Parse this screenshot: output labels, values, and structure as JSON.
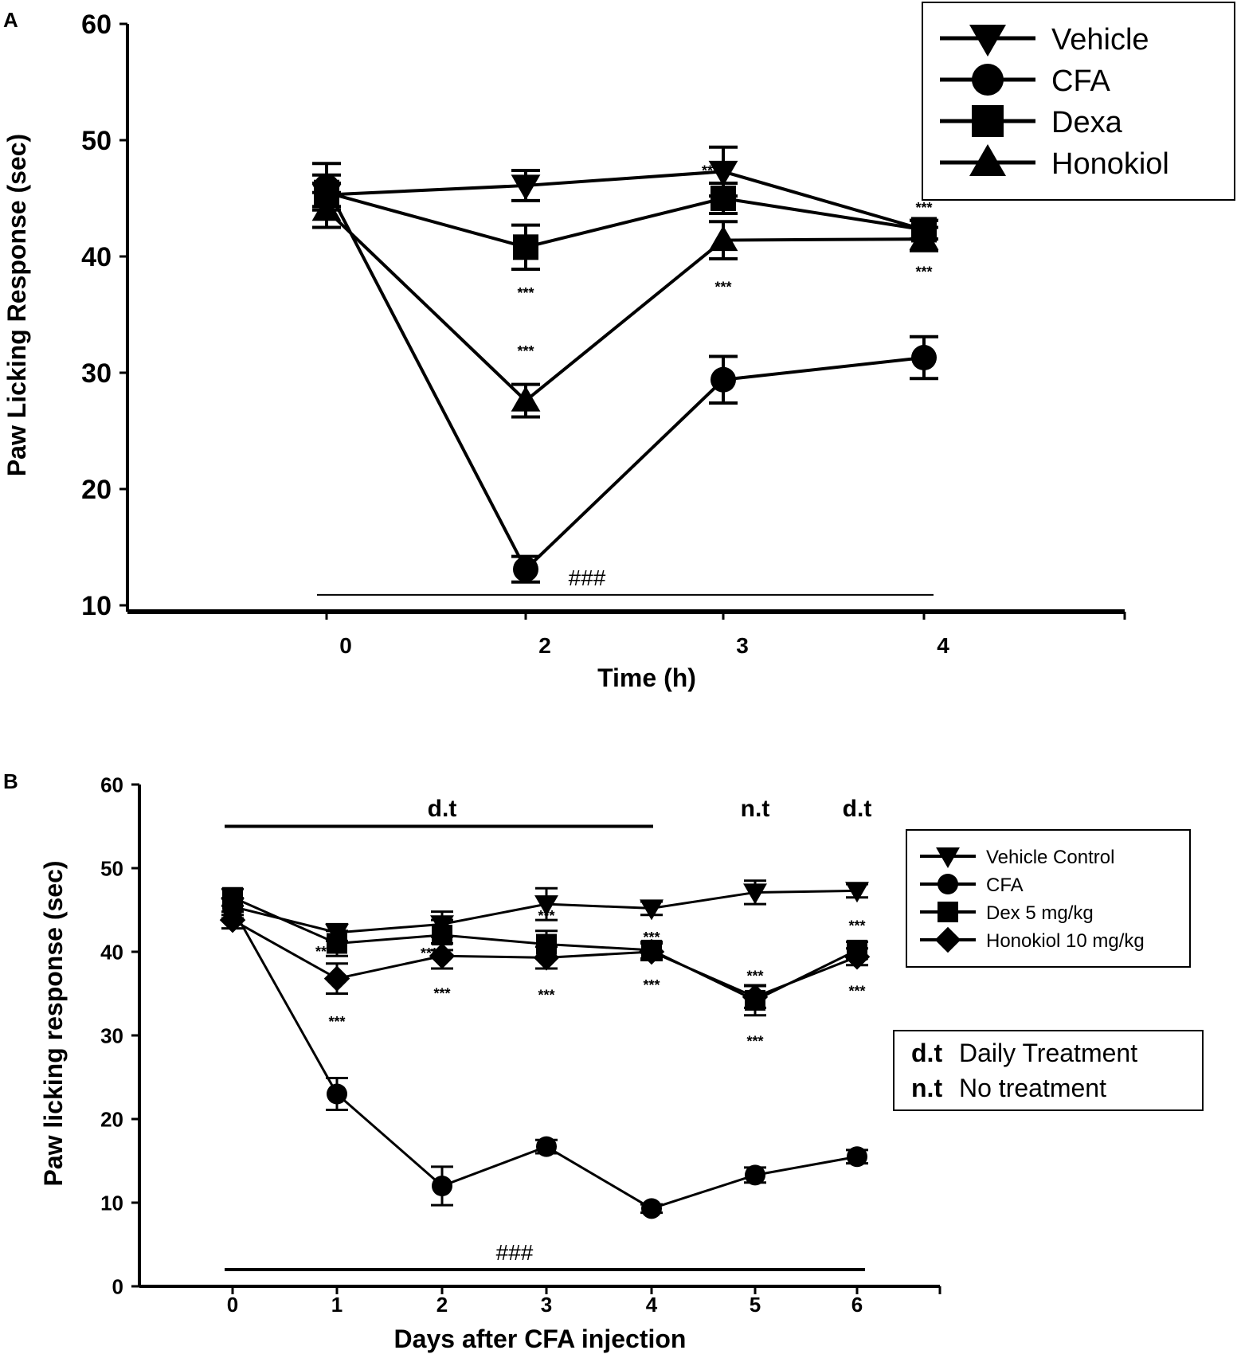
{
  "chart_data": [
    {
      "panel": "A",
      "type": "line",
      "title": "",
      "xlabel": "Time (h)",
      "ylabel": "Paw Licking Response (sec)",
      "x": [
        "0",
        "2",
        "3",
        "4"
      ],
      "ylim": [
        10,
        60
      ],
      "yticks": [
        "10",
        "20",
        "30",
        "40",
        "50",
        "60"
      ],
      "grid": false,
      "legend_position": "top-right",
      "series": [
        {
          "name": "Vehicle",
          "marker": "triangle-down",
          "values": [
            45.3,
            46.1,
            47.3,
            42.3
          ],
          "err": [
            1.0,
            1.3,
            2.1,
            0.8
          ]
        },
        {
          "name": "CFA",
          "marker": "circle",
          "values": [
            46.0,
            13.1,
            29.4,
            31.3
          ],
          "err": [
            2.0,
            1.1,
            2.0,
            1.8
          ]
        },
        {
          "name": "Dexa",
          "marker": "square",
          "values": [
            45.5,
            40.8,
            45.0,
            42.3
          ],
          "err": [
            1.5,
            1.9,
            1.3,
            0.8
          ]
        },
        {
          "name": "Honokiol",
          "marker": "triangle-up",
          "values": [
            44.0,
            27.6,
            41.4,
            41.5
          ],
          "err": [
            1.5,
            1.4,
            1.6,
            1.0
          ]
        }
      ],
      "annotations": [
        {
          "text": "***",
          "x": "2",
          "y": 37.0
        },
        {
          "text": "***",
          "x": "2",
          "y": 32.0
        },
        {
          "text": "***",
          "x": "3",
          "y": 47.5,
          "anchor": "end"
        },
        {
          "text": "***",
          "x": "3",
          "y": 37.5
        },
        {
          "text": "***",
          "x": "4",
          "y": 44.3
        },
        {
          "text": "***",
          "x": "4",
          "y": 38.8
        }
      ],
      "significance_bar": {
        "text": "###",
        "from": "0",
        "to": "4",
        "y": 10.9
      }
    },
    {
      "panel": "B",
      "type": "line",
      "title": "",
      "xlabel": "Days after CFA injection",
      "ylabel": "Paw licking response (sec)",
      "x": [
        "0",
        "1",
        "2",
        "3",
        "4",
        "5",
        "6"
      ],
      "ylim": [
        0,
        60
      ],
      "yticks": [
        "0",
        "10",
        "20",
        "30",
        "40",
        "50",
        "60"
      ],
      "grid": false,
      "legend_position": "right",
      "series": [
        {
          "name": "Vehicle Control",
          "marker": "triangle-down",
          "values": [
            45.4,
            42.3,
            43.3,
            45.7,
            45.2,
            47.1,
            47.3
          ],
          "err": [
            1.0,
            1.0,
            1.5,
            1.9,
            0.8,
            1.4,
            0.8
          ]
        },
        {
          "name": "CFA",
          "marker": "circle",
          "values": [
            45.2,
            23.0,
            12.0,
            16.7,
            9.3,
            13.3,
            15.5
          ],
          "err": [
            1.2,
            1.9,
            2.3,
            0.8,
            0.5,
            0.9,
            0.8
          ]
        },
        {
          "name": "Dex 5 mg/kg",
          "marker": "square",
          "values": [
            46.5,
            41.0,
            42.0,
            40.9,
            40.2,
            34.2,
            40.2
          ],
          "err": [
            1.0,
            1.5,
            1.8,
            1.6,
            1.0,
            1.8,
            1.0
          ]
        },
        {
          "name": "Honokiol 10 mg/kg",
          "marker": "diamond",
          "values": [
            43.8,
            36.8,
            39.5,
            39.3,
            40.0,
            34.6,
            39.4
          ],
          "err": [
            1.0,
            1.8,
            1.5,
            1.3,
            1.0,
            1.3,
            1.0
          ]
        }
      ],
      "annotations": [
        {
          "text": "***",
          "x": "1",
          "y": 40.2,
          "anchor": "end"
        },
        {
          "text": "***",
          "x": "1",
          "y": 31.8
        },
        {
          "text": "***",
          "x": "2",
          "y": 40.0,
          "anchor": "end"
        },
        {
          "text": "***",
          "x": "2",
          "y": 35.2
        },
        {
          "text": "***",
          "x": "3",
          "y": 44.5
        },
        {
          "text": "***",
          "x": "3",
          "y": 35.0
        },
        {
          "text": "***",
          "x": "4",
          "y": 41.9
        },
        {
          "text": "***",
          "x": "4",
          "y": 36.2
        },
        {
          "text": "***",
          "x": "5",
          "y": 37.3
        },
        {
          "text": "***",
          "x": "5",
          "y": 29.5
        },
        {
          "text": "***",
          "x": "6",
          "y": 43.3
        },
        {
          "text": "***",
          "x": "6",
          "y": 35.5
        }
      ],
      "significance_bar": {
        "text": "###",
        "from": "0",
        "to": "6",
        "y": 2.0
      },
      "treatment_bar": {
        "from": "0",
        "to": "4",
        "y": 55.0
      },
      "treatment_labels": [
        {
          "text": "d.t",
          "x": "2"
        },
        {
          "text": "n.t",
          "x": "5"
        },
        {
          "text": "d.t",
          "x": "6"
        }
      ]
    }
  ],
  "panel_a_letter": "A",
  "panel_b_letter": "B",
  "note_box": {
    "lines": [
      {
        "abbr": "d.t",
        "text": "Daily Treatment"
      },
      {
        "abbr": "n.t",
        "text": "No treatment"
      }
    ]
  }
}
